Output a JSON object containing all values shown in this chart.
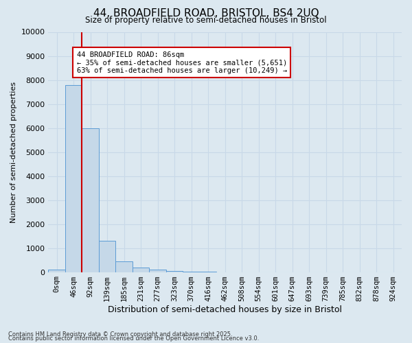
{
  "title_line1": "44, BROADFIELD ROAD, BRISTOL, BS4 2UQ",
  "title_line2": "Size of property relative to semi-detached houses in Bristol",
  "xlabel": "Distribution of semi-detached houses by size in Bristol",
  "ylabel": "Number of semi-detached properties",
  "bar_labels": [
    "0sqm",
    "46sqm",
    "92sqm",
    "139sqm",
    "185sqm",
    "231sqm",
    "277sqm",
    "323sqm",
    "370sqm",
    "416sqm",
    "462sqm",
    "508sqm",
    "554sqm",
    "601sqm",
    "647sqm",
    "693sqm",
    "739sqm",
    "785sqm",
    "832sqm",
    "878sqm",
    "924sqm"
  ],
  "bar_values": [
    100,
    7800,
    6000,
    1300,
    450,
    200,
    100,
    50,
    15,
    5,
    2,
    1,
    0,
    0,
    0,
    0,
    0,
    0,
    0,
    0,
    0
  ],
  "bar_color": "#c5d8e8",
  "bar_edge_color": "#5b9bd5",
  "vline_x_index": 1.5,
  "annotation_title": "44 BROADFIELD ROAD: 86sqm",
  "annotation_line2": "← 35% of semi-detached houses are smaller (5,651)",
  "annotation_line3": "63% of semi-detached houses are larger (10,249) →",
  "vline_color": "#cc0000",
  "annotation_box_color": "#ffffff",
  "annotation_box_edge": "#cc0000",
  "ylim": [
    0,
    10000
  ],
  "yticks": [
    0,
    1000,
    2000,
    3000,
    4000,
    5000,
    6000,
    7000,
    8000,
    9000,
    10000
  ],
  "grid_color": "#c8d8e8",
  "bg_color": "#dce8f0",
  "footnote1": "Contains HM Land Registry data © Crown copyright and database right 2025.",
  "footnote2": "Contains public sector information licensed under the Open Government Licence v3.0."
}
